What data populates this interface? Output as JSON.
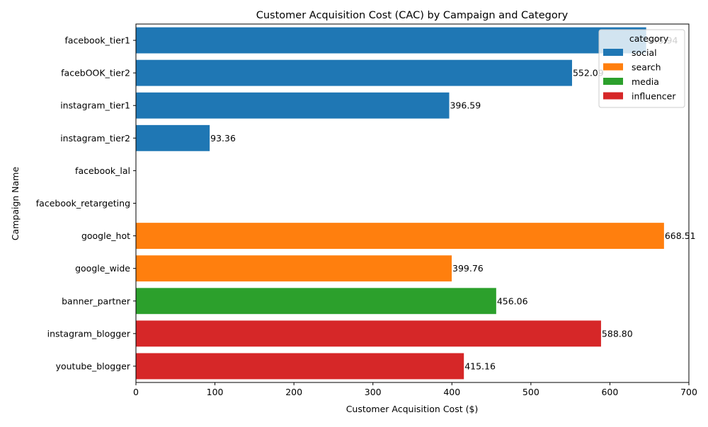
{
  "chart_data": {
    "type": "bar",
    "orientation": "horizontal",
    "title": "Customer Acquisition Cost (CAC) by Campaign and Category",
    "xlabel": "Customer Acquisition Cost ($)",
    "ylabel": "Campaign Name",
    "xlim": [
      0,
      700
    ],
    "xticks": [
      0,
      100,
      200,
      300,
      400,
      500,
      600,
      700
    ],
    "grid": false,
    "legend": {
      "title": "category",
      "placement": "top-right",
      "entries": [
        {
          "label": "social",
          "color": "#1f77b4"
        },
        {
          "label": "search",
          "color": "#ff7f0e"
        },
        {
          "label": "media",
          "color": "#2ca02c"
        },
        {
          "label": "influencer",
          "color": "#d62728"
        }
      ]
    },
    "categories": [
      "facebook_tier1",
      "facebOOK_tier2",
      "instagram_tier1",
      "instagram_tier2",
      "facebook_lal",
      "facebook_retargeting",
      "google_hot",
      "google_wide",
      "banner_partner",
      "instagram_blogger",
      "youtube_blogger"
    ],
    "values": [
      645.94,
      552.09,
      396.59,
      93.36,
      null,
      null,
      668.51,
      399.76,
      456.06,
      588.8,
      415.16
    ],
    "value_labels": [
      "645.94",
      "552.09",
      "396.59",
      "93.36",
      "",
      "",
      "668.51",
      "399.76",
      "456.06",
      "588.80",
      "415.16"
    ],
    "bar_category": [
      "social",
      "social",
      "social",
      "social",
      "social",
      "social",
      "search",
      "search",
      "media",
      "influencer",
      "influencer"
    ]
  }
}
